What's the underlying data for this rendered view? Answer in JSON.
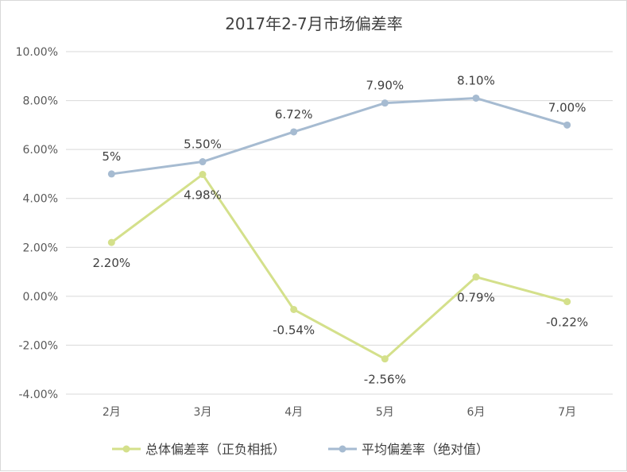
{
  "chart_data": {
    "type": "line",
    "title": "2017年2-7月市场偏差率",
    "xlabel": "",
    "ylabel": "",
    "categories": [
      "2月",
      "3月",
      "4月",
      "5月",
      "6月",
      "7月"
    ],
    "ylim": [
      -4.0,
      10.0
    ],
    "y_ticks": [
      10.0,
      8.0,
      6.0,
      4.0,
      2.0,
      0.0,
      -2.0,
      -4.0
    ],
    "y_tick_labels": [
      "10.00%",
      "8.00%",
      "6.00%",
      "4.00%",
      "2.00%",
      "0.00%",
      "-2.00%",
      "-4.00%"
    ],
    "grid": true,
    "legend_position": "bottom",
    "series": [
      {
        "name": "总体偏差率（正负相抵）",
        "color": "#d4e08b",
        "values": [
          2.2,
          4.98,
          -0.54,
          -2.56,
          0.79,
          -0.22
        ],
        "labels": [
          "2.20%",
          "4.98%",
          "-0.54%",
          "-2.56%",
          "0.79%",
          "-0.22%"
        ],
        "label_position": "below"
      },
      {
        "name": "平均偏差率（绝对值）",
        "color": "#a6bbd1",
        "values": [
          5.0,
          5.5,
          6.72,
          7.9,
          8.1,
          7.0
        ],
        "labels": [
          "5%",
          "5.50%",
          "6.72%",
          "7.90%",
          "8.10%",
          "7.00%"
        ],
        "label_position": "above"
      }
    ]
  }
}
